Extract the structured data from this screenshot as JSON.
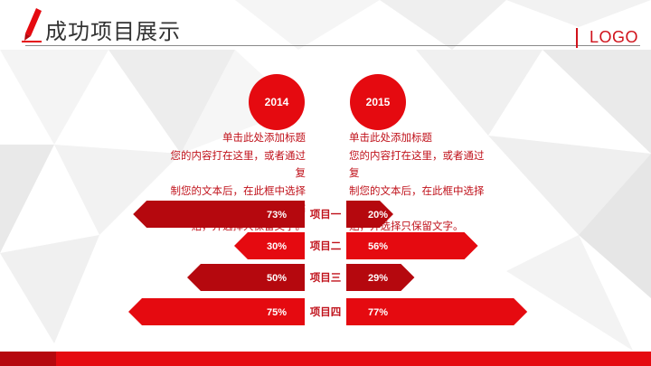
{
  "header": {
    "title": "成功项目展示",
    "logo": "LOGO"
  },
  "years": {
    "left": "2014",
    "right": "2015"
  },
  "descriptions": {
    "left": [
      "单击此处添加标题",
      "您的内容打在这里，或者通过复",
      "制您的文本后，在此框中选择粘",
      "贴，并选择只保留文字。"
    ],
    "right": [
      "单击此处添加标题",
      "您的内容打在这里，或者通过复",
      "制您的文本后，在此框中选择粘",
      "贴，并选择只保留文字。"
    ]
  },
  "chart_data": {
    "type": "bar",
    "categories": [
      "项目一",
      "项目二",
      "项目三",
      "项目四"
    ],
    "series": [
      {
        "values": [
          73,
          30,
          50,
          75
        ],
        "labels": [
          "73%",
          "30%",
          "50%",
          "75%"
        ]
      },
      {
        "values": [
          20,
          56,
          29,
          77
        ],
        "labels": [
          "20%",
          "56%",
          "29%",
          "77%"
        ]
      }
    ],
    "unit": "%"
  },
  "colors": {
    "accent": "#e50a10",
    "dark_red": "#b5080e",
    "text_red": "#c0121b",
    "header_text": "#333333"
  },
  "icons": {
    "pencil": "pencil-icon"
  }
}
